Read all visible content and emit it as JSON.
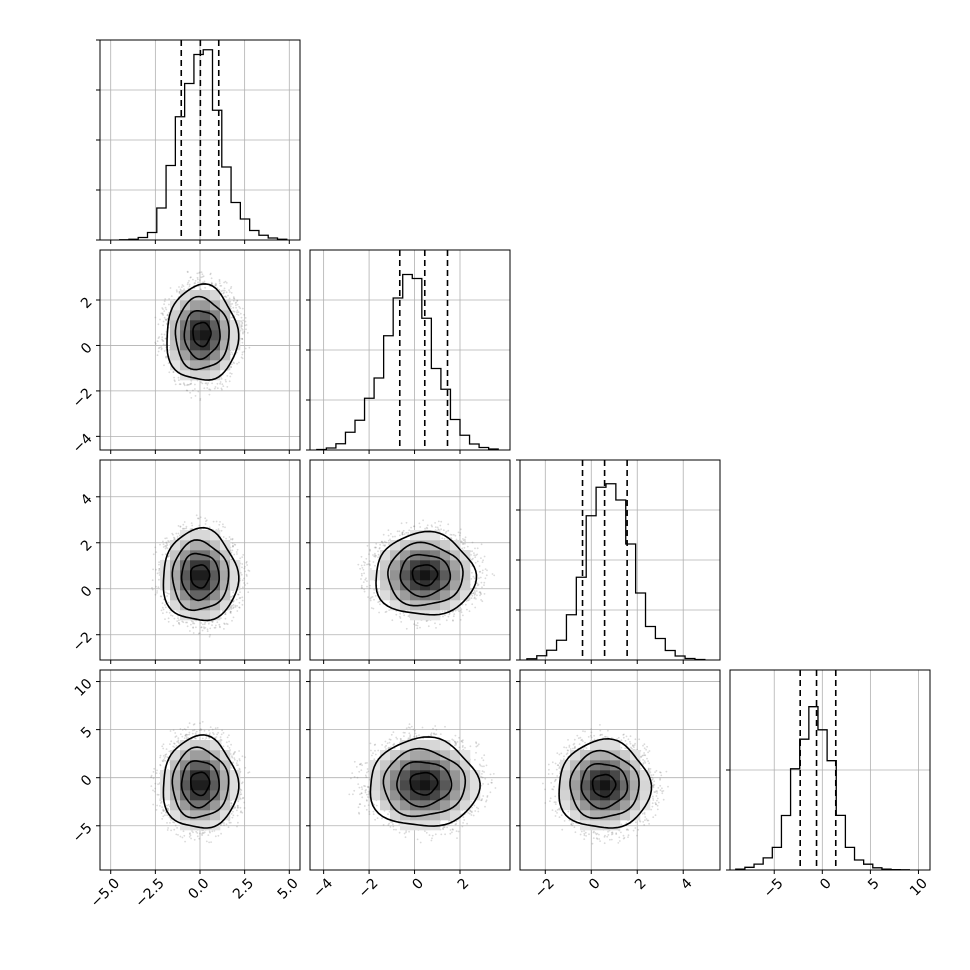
{
  "chart_data": {
    "type": "corner",
    "title": "",
    "n_params": 4,
    "params": [
      {
        "label": "",
        "range": [
          -5.6,
          5.6
        ],
        "ticks": [
          -5.0,
          -2.5,
          0.0,
          2.5,
          5.0
        ],
        "tick_labels": [
          "−5.0",
          "−2.5",
          "0.0",
          "2.5",
          "5.0"
        ],
        "quantiles": [
          -1.05,
          0.02,
          1.05
        ],
        "hist_bins": [
          -4.5,
          -3.98,
          -3.46,
          -2.94,
          -2.42,
          -1.9,
          -1.38,
          -0.86,
          -0.34,
          0.18,
          0.7,
          1.22,
          1.74,
          2.26,
          2.78,
          3.3,
          3.82,
          4.34,
          4.86
        ],
        "hist_counts": [
          1,
          3,
          10,
          30,
          128,
          298,
          493,
          626,
          742,
          761,
          519,
          292,
          150,
          84,
          38,
          19,
          8,
          3,
          1
        ],
        "hist_ylim": [
          0,
          800
        ],
        "hist_yticks": [
          0,
          200,
          400,
          600,
          800
        ]
      },
      {
        "label": "",
        "range": [
          -4.6,
          4.2
        ],
        "ticks": [
          -4,
          -2,
          0,
          2
        ],
        "tick_labels": [
          "−4",
          "−2",
          "0",
          "2"
        ],
        "quantiles": [
          -0.65,
          0.45,
          1.45
        ],
        "hist_bins": [
          -4.3,
          -3.88,
          -3.46,
          -3.04,
          -2.62,
          -2.2,
          -1.78,
          -1.36,
          -0.94,
          -0.52,
          -0.1,
          0.32,
          0.74,
          1.16,
          1.58,
          2,
          2.42,
          2.84,
          3.26,
          3.68
        ],
        "hist_counts": [
          2,
          8,
          25,
          71,
          119,
          207,
          288,
          457,
          608,
          702,
          686,
          527,
          326,
          243,
          122,
          59,
          24,
          10,
          4
        ],
        "hist_ylim": [
          0,
          800
        ],
        "hist_yticks": [
          0,
          200,
          400,
          600
        ]
      },
      {
        "label": "",
        "range": [
          -3.1,
          5.6
        ],
        "ticks": [
          -2,
          0,
          2,
          4
        ],
        "tick_labels": [
          "−2",
          "0",
          "2",
          "4"
        ],
        "quantiles": [
          -0.38,
          0.58,
          1.56
        ],
        "hist_bins": [
          -2.8,
          -2.37,
          -1.94,
          -1.51,
          -1.08,
          -0.65,
          -0.22,
          0.21,
          0.64,
          1.07,
          1.5,
          1.93,
          2.36,
          2.79,
          3.22,
          3.65,
          4.08,
          4.51,
          4.94
        ],
        "hist_counts": [
          5,
          17,
          39,
          79,
          181,
          331,
          577,
          691,
          705,
          640,
          464,
          268,
          134,
          86,
          38,
          16,
          6,
          2
        ],
        "hist_ylim": [
          0,
          800
        ],
        "hist_yticks": [
          0,
          200,
          400,
          600,
          800
        ]
      },
      {
        "label": "",
        "range": [
          -9.6,
          11.2
        ],
        "ticks": [
          -5,
          0,
          5,
          10
        ],
        "tick_labels": [
          "−5",
          "0",
          "5",
          "10"
        ],
        "quantiles": [
          -2.3,
          -0.6,
          1.4
        ],
        "hist_bins": [
          -9.0,
          -8.05,
          -7.1,
          -6.15,
          -5.2,
          -4.25,
          -3.3,
          -2.35,
          -1.4,
          -0.45,
          0.5,
          1.45,
          2.4,
          3.35,
          4.3,
          5.25,
          6.2,
          7.15,
          8.1,
          9.05
        ],
        "hist_counts": [
          8,
          27,
          59,
          121,
          226,
          545,
          1012,
          1308,
          1633,
          1402,
          1093,
          546,
          226,
          100,
          58,
          22,
          8,
          3,
          2
        ],
        "hist_ylim": [
          0,
          2000
        ],
        "hist_yticks": [
          0,
          1000
        ]
      }
    ],
    "pairs": [
      {
        "x": 0,
        "y": 1,
        "center": [
          0.1,
          0.5
        ],
        "sigma": [
          1.0,
          1.05
        ],
        "rho": 0.05,
        "contour_sigmas": [
          0.5,
          1.0,
          1.5,
          2.0
        ]
      },
      {
        "x": 0,
        "y": 2,
        "center": [
          0.0,
          0.55
        ],
        "sigma": [
          1.05,
          1.0
        ],
        "rho": 0.0,
        "contour_sigmas": [
          0.5,
          1.0,
          1.5,
          2.0
        ]
      },
      {
        "x": 1,
        "y": 2,
        "center": [
          0.45,
          0.6
        ],
        "sigma": [
          1.1,
          0.9
        ],
        "rho": 0.0,
        "contour_sigmas": [
          0.5,
          1.0,
          1.5,
          2.0
        ]
      },
      {
        "x": 0,
        "y": 3,
        "center": [
          0.0,
          -0.6
        ],
        "sigma": [
          1.05,
          2.4
        ],
        "rho": 0.0,
        "contour_sigmas": [
          0.5,
          1.0,
          1.5,
          2.0
        ]
      },
      {
        "x": 1,
        "y": 3,
        "center": [
          0.4,
          -0.6
        ],
        "sigma": [
          1.2,
          2.3
        ],
        "rho": 0.0,
        "contour_sigmas": [
          0.5,
          1.0,
          1.5,
          2.0
        ]
      },
      {
        "x": 2,
        "y": 3,
        "center": [
          0.55,
          -0.8
        ],
        "sigma": [
          1.0,
          2.3
        ],
        "rho": 0.0,
        "contour_sigmas": [
          0.5,
          1.0,
          1.5,
          2.0
        ]
      }
    ],
    "grid": true,
    "colors": {
      "line": "#000000",
      "grid": "#b0b0b0",
      "points": "#7a7a7a"
    }
  }
}
